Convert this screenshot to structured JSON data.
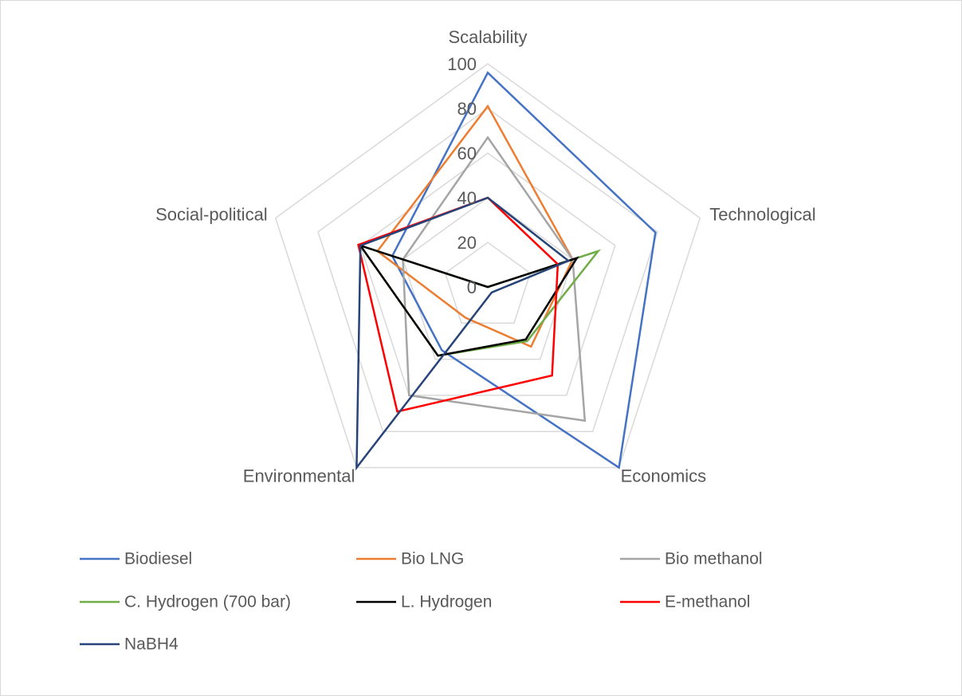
{
  "chart_data": {
    "type": "radar",
    "categories": [
      "Scalability",
      "Technological",
      "Economics",
      "Environmental",
      "Social-political"
    ],
    "ylim": [
      0,
      100
    ],
    "yticks": [
      0,
      20,
      40,
      60,
      80,
      100
    ],
    "grid": true,
    "legend": "bottom",
    "series": [
      {
        "name": "Biodiesel",
        "color": "#4472c4",
        "values": [
          96,
          79,
          100,
          35,
          45
        ]
      },
      {
        "name": "Bio LNG",
        "color": "#ed7d31",
        "values": [
          81,
          40,
          33,
          17,
          52
        ]
      },
      {
        "name": "Bio methanol",
        "color": "#a5a5a5",
        "values": [
          67,
          40,
          74,
          60,
          40
        ]
      },
      {
        "name": "C. Hydrogen (700 bar)",
        "color": "#70ad47",
        "values": [
          0,
          52,
          30,
          38,
          60
        ]
      },
      {
        "name": "L. Hydrogen",
        "color": "#000000",
        "values": [
          0,
          42,
          29,
          38,
          60
        ]
      },
      {
        "name": "E-methanol",
        "color": "#ff0000",
        "values": [
          40,
          33,
          49,
          69,
          61
        ]
      },
      {
        "name": "NaBH4",
        "color": "#264478",
        "values": [
          40,
          38,
          3,
          100,
          60
        ]
      }
    ]
  }
}
